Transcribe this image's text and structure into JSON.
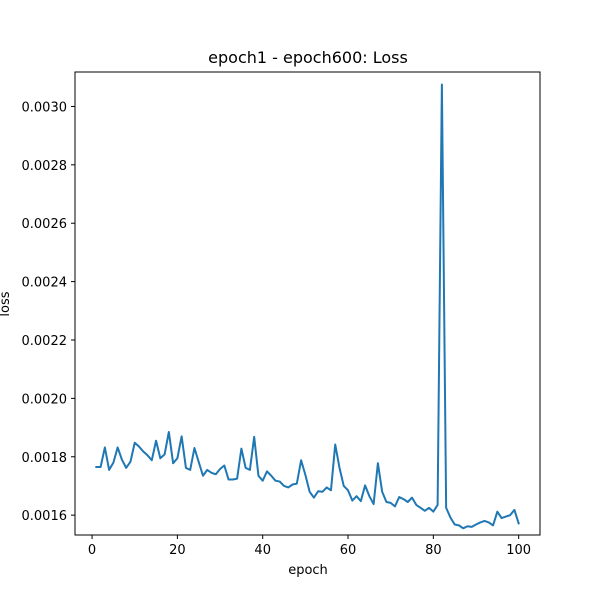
{
  "chart_data": {
    "type": "line",
    "title": "epoch1 - epoch600: Loss",
    "xlabel": "epoch",
    "ylabel": "loss",
    "xlim": [
      -4,
      105
    ],
    "ylim": [
      0.001532,
      0.003118
    ],
    "xticks": [
      0,
      20,
      40,
      60,
      80,
      100
    ],
    "xtick_labels": [
      "0",
      "20",
      "40",
      "60",
      "80",
      "100"
    ],
    "yticks": [
      0.0016,
      0.0018,
      0.002,
      0.0022,
      0.0024,
      0.0026,
      0.0028,
      0.003
    ],
    "ytick_labels": [
      "0.0016",
      "0.0018",
      "0.0020",
      "0.0022",
      "0.0024",
      "0.0026",
      "0.0028",
      "0.0030"
    ],
    "grid": false,
    "line_color": "#1f77b4",
    "series": [
      {
        "x": [
          1,
          2,
          3,
          4,
          5,
          6,
          7,
          8,
          9,
          10,
          11,
          12,
          13,
          14,
          15,
          16,
          17,
          18,
          19,
          20,
          21,
          22,
          23,
          24,
          25,
          26,
          27,
          28,
          29,
          30,
          31,
          32,
          33,
          34,
          35,
          36,
          37,
          38,
          39,
          40,
          41,
          42,
          43,
          44,
          45,
          46,
          47,
          48,
          49,
          50,
          51,
          52,
          53,
          54,
          55,
          56,
          57,
          58,
          59,
          60,
          61,
          62,
          63,
          64,
          65,
          66,
          67,
          68,
          69,
          70,
          71,
          72,
          73,
          74,
          75,
          76,
          77,
          78,
          79,
          80,
          81,
          82,
          83,
          84,
          85,
          86,
          87,
          88,
          89,
          90,
          91,
          92,
          93,
          94,
          95,
          96,
          97,
          98,
          99,
          100
        ],
        "values": [
          0.001765,
          0.001765,
          0.001832,
          0.001755,
          0.00178,
          0.001832,
          0.00179,
          0.001762,
          0.001783,
          0.001848,
          0.001835,
          0.001818,
          0.001805,
          0.001788,
          0.001855,
          0.001795,
          0.001808,
          0.001885,
          0.001778,
          0.001795,
          0.00187,
          0.001762,
          0.001755,
          0.00183,
          0.001782,
          0.001735,
          0.001755,
          0.001745,
          0.00174,
          0.001758,
          0.00177,
          0.001722,
          0.001722,
          0.001725,
          0.001828,
          0.001762,
          0.001755,
          0.001868,
          0.001735,
          0.001718,
          0.00175,
          0.001735,
          0.001718,
          0.001715,
          0.0017,
          0.001695,
          0.001705,
          0.001708,
          0.001788,
          0.001738,
          0.00168,
          0.00166,
          0.001682,
          0.00168,
          0.001695,
          0.001685,
          0.001842,
          0.001762,
          0.0017,
          0.001685,
          0.00165,
          0.001665,
          0.001648,
          0.001702,
          0.001665,
          0.001638,
          0.001778,
          0.00168,
          0.001645,
          0.001642,
          0.00163,
          0.001662,
          0.001655,
          0.001645,
          0.00166,
          0.001635,
          0.001625,
          0.001615,
          0.001625,
          0.001612,
          0.001635,
          0.003075,
          0.001625,
          0.001592,
          0.001568,
          0.001565,
          0.001555,
          0.001562,
          0.00156,
          0.001568,
          0.001575,
          0.00158,
          0.001575,
          0.001565,
          0.001612,
          0.00159,
          0.001595,
          0.0016,
          0.001618,
          0.001572
        ]
      }
    ]
  }
}
